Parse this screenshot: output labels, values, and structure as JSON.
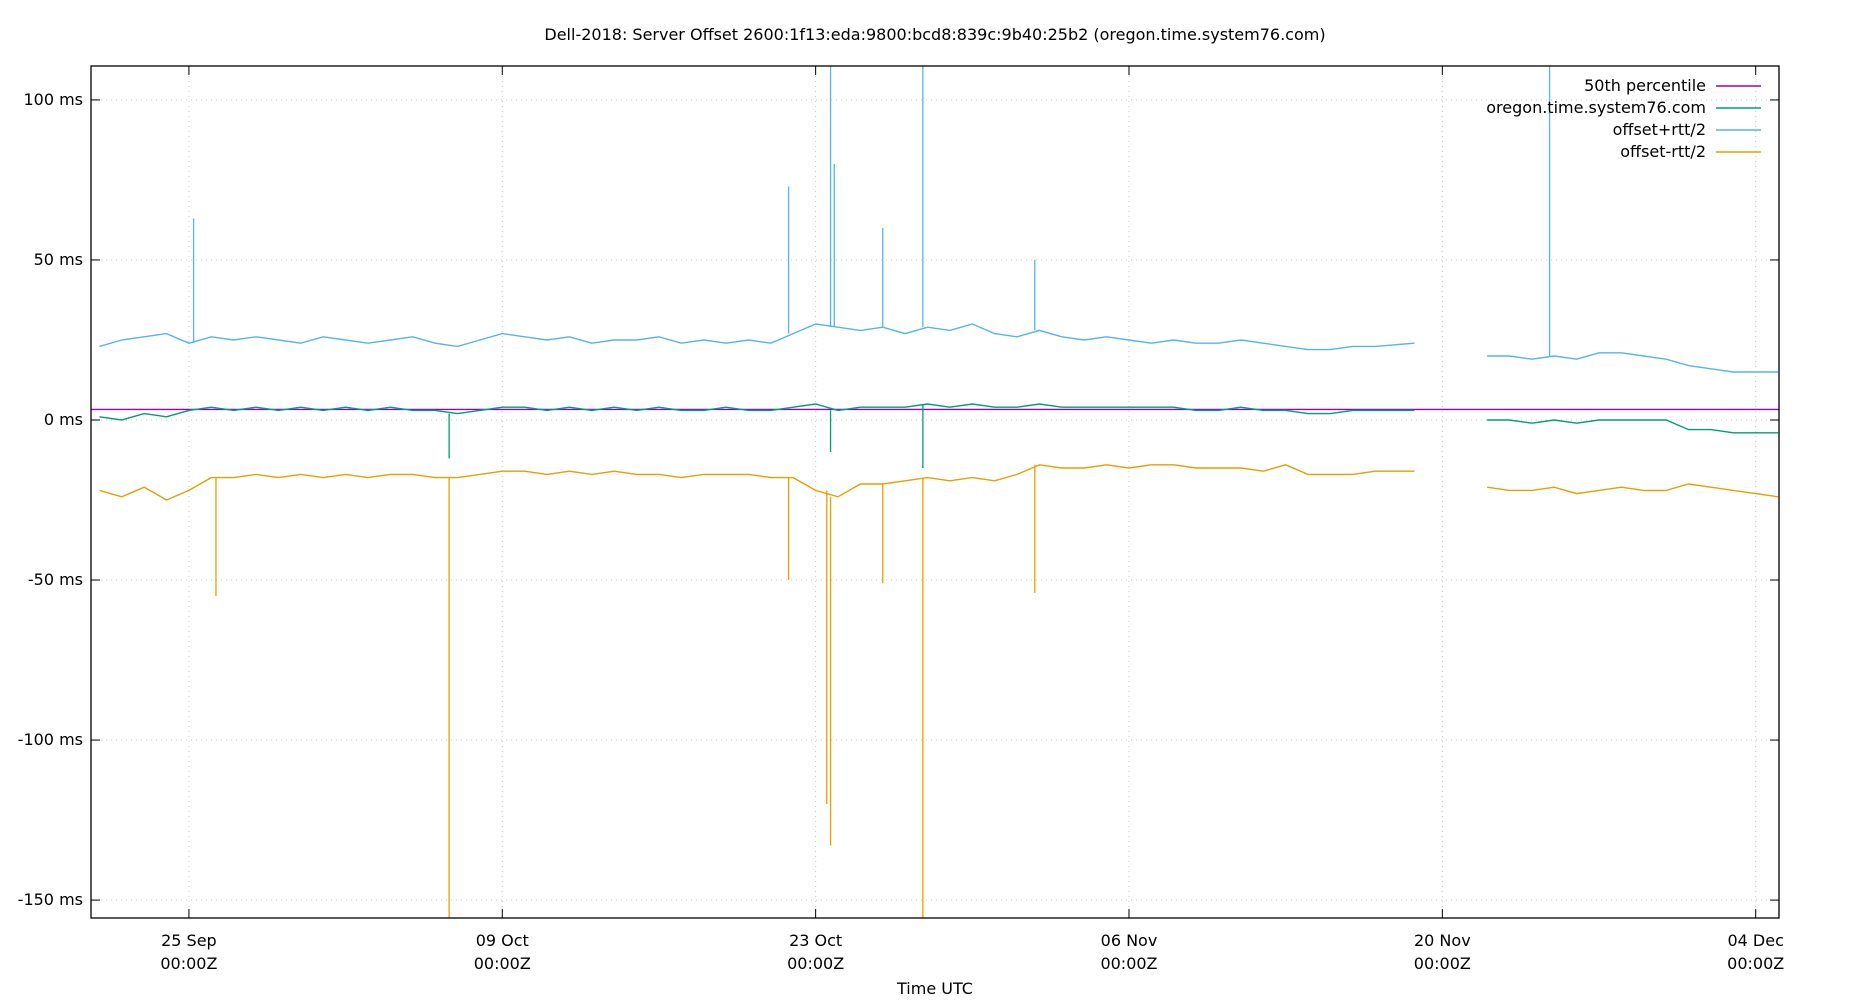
{
  "chart_data": {
    "type": "line",
    "title": "Dell-2018: Server Offset 2600:1f13:eda:9800:bcd8:839c:9b40:25b2 (oregon.time.system76.com)",
    "xlabel": "Time UTC",
    "ylabel": "",
    "xlim": [
      "09-20 15:00",
      "12-05 01:00"
    ],
    "ylim": [
      -155.6,
      110.6
    ],
    "grid": true,
    "legend_position": "top-right",
    "y_ticks": [
      {
        "value": 100,
        "label": "100 ms"
      },
      {
        "value": 50,
        "label": "50 ms"
      },
      {
        "value": 0,
        "label": "0 ms"
      },
      {
        "value": -50,
        "label": "-50 ms"
      },
      {
        "value": -100,
        "label": "-100 ms"
      },
      {
        "value": -150,
        "label": "-150 ms"
      }
    ],
    "x_ticks": [
      {
        "value": "09-25 00:00",
        "label1": "25 Sep",
        "label2": "00:00Z"
      },
      {
        "value": "10-09 00:00",
        "label1": "09 Oct",
        "label2": "00:00Z"
      },
      {
        "value": "10-23 00:00",
        "label1": "23 Oct",
        "label2": "00:00Z"
      },
      {
        "value": "11-06 00:00",
        "label1": "06 Nov",
        "label2": "00:00Z"
      },
      {
        "value": "11-20 00:00",
        "label1": "20 Nov",
        "label2": "00:00Z"
      },
      {
        "value": "12-04 00:00",
        "label1": "04 Dec",
        "label2": "00:00Z"
      }
    ],
    "x": [
      "09-21 00:00",
      "09-22 00:00",
      "09-23 00:00",
      "09-24 00:00",
      "09-25 00:00",
      "09-26 00:00",
      "09-27 00:00",
      "09-28 00:00",
      "09-29 00:00",
      "09-30 00:00",
      "10-01 00:00",
      "10-02 00:00",
      "10-03 00:00",
      "10-04 00:00",
      "10-05 00:00",
      "10-06 00:00",
      "10-07 00:00",
      "10-08 00:00",
      "10-09 00:00",
      "10-10 00:00",
      "10-11 00:00",
      "10-12 00:00",
      "10-13 00:00",
      "10-14 00:00",
      "10-15 00:00",
      "10-16 00:00",
      "10-17 00:00",
      "10-18 00:00",
      "10-19 00:00",
      "10-20 00:00",
      "10-21 00:00",
      "10-22 00:00",
      "10-23 00:00",
      "10-24 00:00",
      "10-25 00:00",
      "10-26 00:00",
      "10-27 00:00",
      "10-28 00:00",
      "10-29 00:00",
      "10-30 00:00",
      "10-31 00:00",
      "11-01 00:00",
      "11-02 00:00",
      "11-03 00:00",
      "11-04 00:00",
      "11-05 00:00",
      "11-06 00:00",
      "11-07 00:00",
      "11-08 00:00",
      "11-09 00:00",
      "11-10 00:00",
      "11-11 00:00",
      "11-12 00:00",
      "11-13 00:00",
      "11-14 00:00",
      "11-15 00:00",
      "11-16 00:00",
      "11-17 00:00",
      "11-18 18:00",
      "11-20 00:00",
      "11-22 00:00",
      "11-23 00:00",
      "11-24 00:00",
      "11-25 00:00",
      "11-26 00:00",
      "11-27 00:00",
      "11-28 00:00",
      "11-29 00:00",
      "11-30 00:00",
      "12-01 00:00",
      "12-02 00:00",
      "12-03 00:00",
      "12-04 00:00",
      "12-05 00:00"
    ],
    "series": [
      {
        "name": "50th percentile",
        "color": "#9400d3",
        "constant": 3.3
      },
      {
        "name": "oregon.time.system76.com",
        "color": "#009e73",
        "values": [
          1,
          0,
          2,
          1,
          3,
          4,
          3,
          4,
          3,
          4,
          3,
          4,
          3,
          4,
          3,
          3,
          2,
          3,
          4,
          4,
          3,
          4,
          3,
          4,
          3,
          4,
          3,
          3,
          4,
          3,
          3,
          4,
          5,
          3,
          4,
          4,
          4,
          5,
          4,
          5,
          4,
          4,
          5,
          4,
          4,
          4,
          4,
          4,
          4,
          3,
          3,
          4,
          3,
          3,
          2,
          2,
          3,
          3,
          3,
          null,
          0,
          0,
          -1,
          0,
          -1,
          0,
          0,
          0,
          0,
          -3,
          -3,
          -4,
          -4,
          -4
        ]
      },
      {
        "name": "offset+rtt/2",
        "color": "#56b4e9",
        "values": [
          23,
          25,
          26,
          27,
          24,
          26,
          25,
          26,
          25,
          24,
          26,
          25,
          24,
          25,
          26,
          24,
          23,
          25,
          27,
          26,
          25,
          26,
          24,
          25,
          25,
          26,
          24,
          25,
          24,
          25,
          24,
          27,
          30,
          29,
          28,
          29,
          27,
          29,
          28,
          30,
          27,
          26,
          28,
          26,
          25,
          26,
          25,
          24,
          25,
          24,
          24,
          25,
          24,
          23,
          22,
          22,
          23,
          23,
          24,
          null,
          20,
          20,
          19,
          20,
          19,
          21,
          21,
          20,
          19,
          17,
          16,
          15,
          15,
          15
        ]
      },
      {
        "name": "offset-rtt/2",
        "color": "#e69f00",
        "values": [
          -22,
          -24,
          -21,
          -25,
          -22,
          -18,
          -18,
          -17,
          -18,
          -17,
          -18,
          -17,
          -18,
          -17,
          -17,
          -18,
          -18,
          -17,
          -16,
          -16,
          -17,
          -16,
          -17,
          -16,
          -17,
          -17,
          -18,
          -17,
          -17,
          -17,
          -18,
          -18,
          -22,
          -24,
          -20,
          -20,
          -19,
          -18,
          -19,
          -18,
          -19,
          -17,
          -14,
          -15,
          -15,
          -14,
          -15,
          -14,
          -14,
          -15,
          -15,
          -15,
          -16,
          -14,
          -17,
          -17,
          -17,
          -16,
          -16,
          null,
          -21,
          -22,
          -22,
          -21,
          -23,
          -22,
          -21,
          -22,
          -22,
          -20,
          -21,
          -22,
          -23,
          -24
        ]
      }
    ],
    "spikes": [
      {
        "x": "09-25 05:00",
        "series": "offset+rtt/2",
        "value": 63
      },
      {
        "x": "10-21 19:00",
        "series": "offset+rtt/2",
        "value": 73
      },
      {
        "x": "10-23 16:00",
        "series": "offset+rtt/2",
        "value": 111
      },
      {
        "x": "10-23 20:00",
        "series": "offset+rtt/2",
        "value": 80
      },
      {
        "x": "10-27 19:00",
        "series": "offset+rtt/2",
        "value": 111
      },
      {
        "x": "10-26 00:00",
        "series": "offset+rtt/2",
        "value": 60
      },
      {
        "x": "11-01 19:00",
        "series": "offset+rtt/2",
        "value": 50
      },
      {
        "x": "11-24 19:00",
        "series": "offset+rtt/2",
        "value": 111
      },
      {
        "x": "09-26 05:00",
        "series": "offset-rtt/2",
        "value": -55
      },
      {
        "x": "10-06 15:00",
        "series": "offset-rtt/2",
        "value": -156
      },
      {
        "x": "10-21 19:00",
        "series": "offset-rtt/2",
        "value": -50
      },
      {
        "x": "10-23 16:00",
        "series": "offset-rtt/2",
        "value": -133
      },
      {
        "x": "10-23 12:00",
        "series": "offset-rtt/2",
        "value": -120
      },
      {
        "x": "10-26 00:00",
        "series": "offset-rtt/2",
        "value": -51
      },
      {
        "x": "10-27 19:00",
        "series": "offset-rtt/2",
        "value": -156
      },
      {
        "x": "11-01 19:00",
        "series": "offset-rtt/2",
        "value": -54
      },
      {
        "x": "10-06 15:00",
        "series": "oregon.time.system76.com",
        "value": -12
      },
      {
        "x": "10-23 16:00",
        "series": "oregon.time.system76.com",
        "value": -10
      },
      {
        "x": "10-27 19:00",
        "series": "oregon.time.system76.com",
        "value": -15
      }
    ]
  }
}
